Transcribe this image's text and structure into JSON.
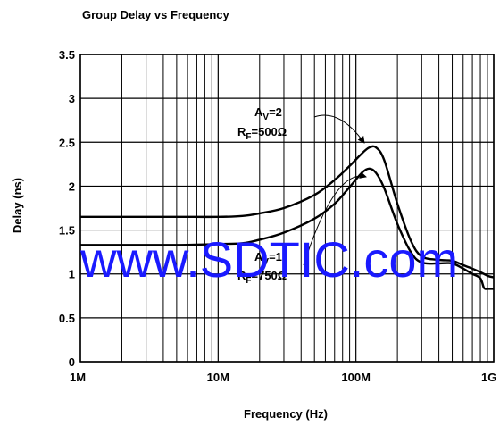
{
  "chart_data": {
    "type": "line",
    "title": "Group Delay vs Frequency",
    "xlabel": "Frequency (Hz)",
    "ylabel": "Delay (ns)",
    "x_scale": "log",
    "x_unit": "Hz",
    "xlim": [
      1000000,
      1000000000
    ],
    "ylim": [
      0,
      3.5
    ],
    "xticks": [
      {
        "value": 1000000,
        "label": "1M"
      },
      {
        "value": 10000000,
        "label": "10M"
      },
      {
        "value": 100000000,
        "label": "100M"
      },
      {
        "value": 1000000000,
        "label": "1G"
      }
    ],
    "yticks": [
      {
        "value": 0,
        "label": "0"
      },
      {
        "value": 0.5,
        "label": "0.5"
      },
      {
        "value": 1,
        "label": "1"
      },
      {
        "value": 1.5,
        "label": "1.5"
      },
      {
        "value": 2,
        "label": "2"
      },
      {
        "value": 2.5,
        "label": "2.5"
      },
      {
        "value": 3,
        "label": "3"
      },
      {
        "value": 3.5,
        "label": "3.5"
      }
    ],
    "grid": true,
    "series": [
      {
        "annotation": {
          "gain_sub": "V",
          "gain_value": "=2",
          "rf_sub": "F",
          "rf_value": "=500Ω"
        },
        "x": [
          1000000,
          2000000,
          5000000,
          10000000,
          15000000,
          20000000,
          30000000,
          50000000,
          70000000,
          90000000,
          110000000,
          125000000,
          140000000,
          160000000,
          200000000,
          250000000,
          300000000,
          400000000,
          500000000,
          600000000,
          700000000,
          800000000,
          900000000,
          1000000000
        ],
        "y": [
          1.65,
          1.65,
          1.65,
          1.65,
          1.66,
          1.69,
          1.75,
          1.9,
          2.07,
          2.23,
          2.37,
          2.44,
          2.44,
          2.3,
          1.8,
          1.38,
          1.2,
          1.16,
          1.15,
          1.1,
          1.06,
          1.02,
          0.98,
          0.96
        ]
      },
      {
        "annotation": {
          "gain_sub": "V",
          "gain_value": "=1",
          "rf_sub": "F",
          "rf_value": "=750Ω"
        },
        "x": [
          1000000,
          2000000,
          5000000,
          10000000,
          15000000,
          20000000,
          30000000,
          50000000,
          70000000,
          90000000,
          110000000,
          125000000,
          140000000,
          160000000,
          200000000,
          250000000,
          300000000,
          400000000,
          500000000,
          600000000,
          700000000,
          800000000,
          850000000,
          900000000,
          1000000000
        ],
        "y": [
          1.33,
          1.33,
          1.33,
          1.34,
          1.35,
          1.39,
          1.47,
          1.63,
          1.8,
          1.99,
          2.15,
          2.2,
          2.15,
          1.98,
          1.57,
          1.25,
          1.13,
          1.12,
          1.12,
          1.06,
          1.0,
          0.95,
          0.84,
          0.83,
          0.83
        ]
      }
    ],
    "watermark": "www.SDTIC.com"
  }
}
